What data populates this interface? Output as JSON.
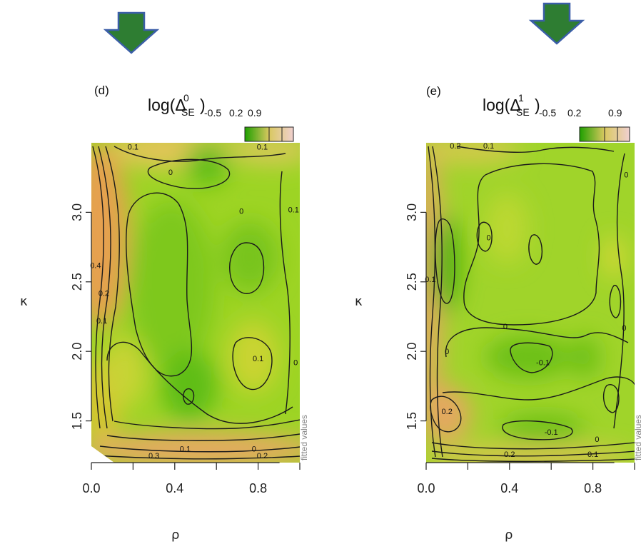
{
  "colors": {
    "arrow_fill": "#2e7d32",
    "arrow_stroke": "#3b5ea8",
    "field_low": "#2fa800",
    "field_mid": "#a8d82a",
    "field_high": "#e8a878",
    "legend_low": "#1fa000",
    "legend_mid": "#d9c860",
    "legend_high": "#f0d0d0"
  },
  "chart_data": [
    {
      "type": "heatmap",
      "panel_tag": "(d)",
      "title_main": "log(Δ",
      "title_superscript": "0",
      "title_subscript": "SE",
      "title_close": ")",
      "legend_ticks": [
        "-0.5",
        "0.2",
        "0.9"
      ],
      "legend_range": [
        -0.5,
        0.9
      ],
      "side_label": "fitted values",
      "xlabel": "ρ",
      "ylabel": "κ",
      "xticks": [
        0.0,
        0.4,
        0.8
      ],
      "xtick_labels": [
        "0.0",
        "0.4",
        "0.8"
      ],
      "yticks": [
        1.5,
        2.0,
        2.5,
        3.0
      ],
      "ytick_labels": [
        "1.5",
        "2.0",
        "2.5",
        "3.0"
      ],
      "xlim": [
        0.0,
        1.0
      ],
      "ylim": [
        1.2,
        3.5
      ],
      "contour_labels": [
        {
          "text": "0.1",
          "x": 0.2,
          "y": 3.45
        },
        {
          "text": "0.1",
          "x": 0.82,
          "y": 3.45
        },
        {
          "text": "0",
          "x": 0.38,
          "y": 3.27
        },
        {
          "text": "0",
          "x": 0.72,
          "y": 2.99
        },
        {
          "text": "0.1",
          "x": 0.97,
          "y": 3.0
        },
        {
          "text": "0.4",
          "x": 0.02,
          "y": 2.6
        },
        {
          "text": "0.2",
          "x": 0.06,
          "y": 2.4
        },
        {
          "text": "0.1",
          "x": 0.05,
          "y": 2.2
        },
        {
          "text": "0.1",
          "x": 0.8,
          "y": 1.93
        },
        {
          "text": "0",
          "x": 0.98,
          "y": 1.9
        },
        {
          "text": "0.1",
          "x": 0.45,
          "y": 1.28
        },
        {
          "text": "0",
          "x": 0.78,
          "y": 1.28
        },
        {
          "text": "0.3",
          "x": 0.3,
          "y": 1.23
        },
        {
          "text": "0.2",
          "x": 0.82,
          "y": 1.23
        }
      ]
    },
    {
      "type": "heatmap",
      "panel_tag": "(e)",
      "title_main": "log(Δ",
      "title_superscript": "1",
      "title_subscript": "SE",
      "title_close": ")",
      "legend_ticks": [
        "-0.5",
        "0.2",
        "0.9"
      ],
      "legend_range": [
        -0.5,
        0.9
      ],
      "side_label": "fitted values",
      "xlabel": "ρ",
      "ylabel": "κ",
      "xticks": [
        0.0,
        0.4,
        0.8
      ],
      "xtick_labels": [
        "0.0",
        "0.4",
        "0.8"
      ],
      "yticks": [
        1.5,
        2.0,
        2.5,
        3.0
      ],
      "ytick_labels": [
        "1.5",
        "2.0",
        "2.5",
        "3.0"
      ],
      "xlim": [
        0.0,
        1.0
      ],
      "ylim": [
        1.2,
        3.5
      ],
      "contour_labels": [
        {
          "text": "0.2",
          "x": 0.14,
          "y": 3.46
        },
        {
          "text": "0.1",
          "x": 0.3,
          "y": 3.46
        },
        {
          "text": "0",
          "x": 0.96,
          "y": 3.25
        },
        {
          "text": "0",
          "x": 0.3,
          "y": 2.8
        },
        {
          "text": "0.1",
          "x": 0.02,
          "y": 2.5
        },
        {
          "text": "0",
          "x": 0.95,
          "y": 2.15
        },
        {
          "text": "0",
          "x": 0.38,
          "y": 2.16
        },
        {
          "text": "0",
          "x": 0.1,
          "y": 1.98
        },
        {
          "text": "-0.1",
          "x": 0.56,
          "y": 1.9
        },
        {
          "text": "0.2",
          "x": 0.1,
          "y": 1.55
        },
        {
          "text": "-0.1",
          "x": 0.6,
          "y": 1.4
        },
        {
          "text": "0",
          "x": 0.82,
          "y": 1.35
        },
        {
          "text": "0.2",
          "x": 0.4,
          "y": 1.24
        },
        {
          "text": "0.1",
          "x": 0.8,
          "y": 1.24
        }
      ]
    }
  ]
}
